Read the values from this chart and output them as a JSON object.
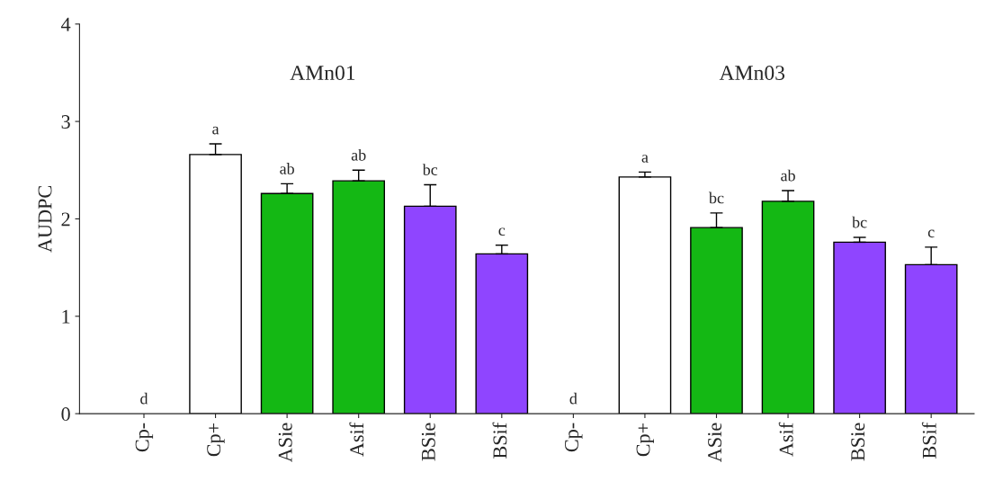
{
  "chart_data": {
    "type": "bar",
    "ylabel": "AUDPC",
    "categories": [
      "Cp-",
      "Cp+",
      "ASie",
      "Asif",
      "BSie",
      "BSif",
      "Cp-",
      "Cp+",
      "ASie",
      "Asif",
      "BSie",
      "BSif"
    ],
    "values": [
      0,
      2.66,
      2.26,
      2.39,
      2.13,
      1.64,
      0,
      2.43,
      1.91,
      2.18,
      1.76,
      1.53
    ],
    "errors": [
      null,
      0.11,
      0.1,
      0.11,
      0.22,
      0.09,
      null,
      0.05,
      0.15,
      0.11,
      0.05,
      0.18
    ],
    "colors": [
      "#ffffff",
      "#ffffff",
      "#14b814",
      "#14b814",
      "#8f45ff",
      "#8f45ff",
      "#ffffff",
      "#ffffff",
      "#14b814",
      "#14b814",
      "#8f45ff",
      "#8f45ff"
    ],
    "value_labels": [
      "d",
      "a",
      "ab",
      "ab",
      "bc",
      "c",
      "d",
      "a",
      "bc",
      "ab",
      "bc",
      "c"
    ],
    "annotations": [
      "AMn01",
      "AMn03"
    ],
    "ylim": [
      0,
      4
    ],
    "yticks": [
      0,
      1,
      2,
      3,
      4
    ],
    "grid": false,
    "legend": false
  }
}
